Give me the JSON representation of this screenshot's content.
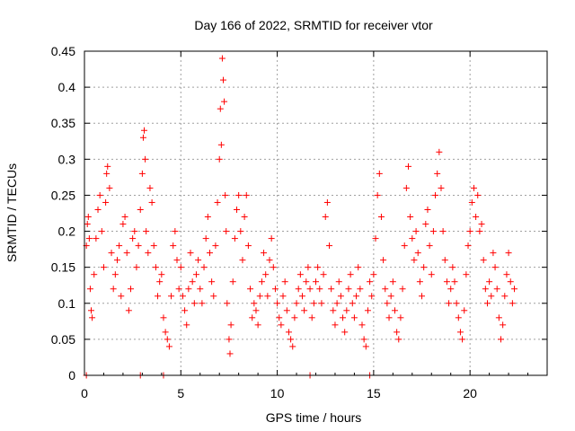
{
  "chart_data": {
    "type": "scatter",
    "title": "Day 166 of 2022, SRMTID for receiver vtor",
    "xlabel": "GPS time / hours",
    "ylabel": "SRMTID / TECUs",
    "xlim": [
      0,
      24
    ],
    "ylim": [
      0,
      0.45
    ],
    "xticks": [
      0,
      5,
      10,
      15,
      20
    ],
    "yticks": [
      0,
      0.05,
      0.1,
      0.15,
      0.2,
      0.25,
      0.3,
      0.35,
      0.4,
      0.45
    ],
    "xtick_labels": [
      "0",
      "5",
      "10",
      "15",
      "20"
    ],
    "ytick_labels": [
      "0",
      "0.05",
      "0.1",
      "0.15",
      "0.2",
      "0.25",
      "0.3",
      "0.35",
      "0.4",
      "0.45"
    ],
    "marker": "plus",
    "color": "#ff0000",
    "grid": true,
    "series": [
      {
        "name": "SRMTID",
        "points": [
          [
            0.1,
            0.18
          ],
          [
            0.15,
            0.21
          ],
          [
            0.2,
            0.22
          ],
          [
            0.25,
            0.19
          ],
          [
            0.3,
            0.12
          ],
          [
            0.35,
            0.09
          ],
          [
            0.4,
            0.08
          ],
          [
            0.5,
            0.14
          ],
          [
            0.6,
            0.19
          ],
          [
            0.7,
            0.23
          ],
          [
            0.8,
            0.25
          ],
          [
            0.9,
            0.2
          ],
          [
            1.0,
            0.15
          ],
          [
            1.1,
            0.24
          ],
          [
            1.15,
            0.28
          ],
          [
            1.2,
            0.29
          ],
          [
            1.3,
            0.26
          ],
          [
            1.4,
            0.17
          ],
          [
            1.5,
            0.12
          ],
          [
            1.6,
            0.14
          ],
          [
            1.7,
            0.16
          ],
          [
            1.8,
            0.18
          ],
          [
            1.9,
            0.11
          ],
          [
            2.0,
            0.21
          ],
          [
            2.1,
            0.22
          ],
          [
            2.2,
            0.17
          ],
          [
            2.3,
            0.09
          ],
          [
            2.4,
            0.12
          ],
          [
            2.5,
            0.19
          ],
          [
            2.6,
            0.2
          ],
          [
            2.7,
            0.15
          ],
          [
            2.8,
            0.18
          ],
          [
            2.9,
            0.23
          ],
          [
            3.0,
            0.28
          ],
          [
            3.05,
            0.33
          ],
          [
            3.1,
            0.34
          ],
          [
            3.15,
            0.3
          ],
          [
            3.2,
            0.2
          ],
          [
            3.3,
            0.17
          ],
          [
            3.4,
            0.26
          ],
          [
            3.5,
            0.24
          ],
          [
            3.6,
            0.18
          ],
          [
            3.7,
            0.15
          ],
          [
            3.8,
            0.11
          ],
          [
            3.9,
            0.13
          ],
          [
            4.0,
            0.14
          ],
          [
            4.1,
            0.08
          ],
          [
            4.2,
            0.06
          ],
          [
            4.3,
            0.05
          ],
          [
            4.4,
            0.04
          ],
          [
            4.5,
            0.11
          ],
          [
            4.6,
            0.18
          ],
          [
            4.7,
            0.2
          ],
          [
            4.8,
            0.16
          ],
          [
            4.9,
            0.12
          ],
          [
            5.0,
            0.15
          ],
          [
            5.1,
            0.11
          ],
          [
            5.2,
            0.09
          ],
          [
            5.3,
            0.07
          ],
          [
            5.4,
            0.12
          ],
          [
            5.5,
            0.17
          ],
          [
            5.6,
            0.13
          ],
          [
            5.7,
            0.1
          ],
          [
            5.8,
            0.14
          ],
          [
            5.9,
            0.16
          ],
          [
            6.0,
            0.12
          ],
          [
            6.1,
            0.1
          ],
          [
            6.2,
            0.15
          ],
          [
            6.3,
            0.19
          ],
          [
            6.4,
            0.22
          ],
          [
            6.5,
            0.17
          ],
          [
            6.6,
            0.13
          ],
          [
            6.7,
            0.11
          ],
          [
            6.8,
            0.18
          ],
          [
            6.9,
            0.24
          ],
          [
            7.0,
            0.3
          ],
          [
            7.05,
            0.37
          ],
          [
            7.1,
            0.32
          ],
          [
            7.15,
            0.44
          ],
          [
            7.2,
            0.41
          ],
          [
            7.25,
            0.38
          ],
          [
            7.3,
            0.25
          ],
          [
            7.35,
            0.2
          ],
          [
            7.4,
            0.1
          ],
          [
            7.5,
            0.05
          ],
          [
            7.55,
            0.03
          ],
          [
            7.6,
            0.07
          ],
          [
            7.7,
            0.13
          ],
          [
            7.8,
            0.19
          ],
          [
            7.9,
            0.23
          ],
          [
            8.0,
            0.25
          ],
          [
            8.1,
            0.2
          ],
          [
            8.2,
            0.16
          ],
          [
            8.3,
            0.22
          ],
          [
            8.4,
            0.25
          ],
          [
            8.5,
            0.18
          ],
          [
            8.6,
            0.12
          ],
          [
            8.7,
            0.08
          ],
          [
            8.8,
            0.1
          ],
          [
            8.9,
            0.09
          ],
          [
            9.0,
            0.07
          ],
          [
            9.1,
            0.11
          ],
          [
            9.2,
            0.13
          ],
          [
            9.3,
            0.17
          ],
          [
            9.4,
            0.14
          ],
          [
            9.5,
            0.11
          ],
          [
            9.6,
            0.16
          ],
          [
            9.7,
            0.19
          ],
          [
            9.8,
            0.15
          ],
          [
            9.9,
            0.12
          ],
          [
            10.0,
            0.1
          ],
          [
            10.1,
            0.08
          ],
          [
            10.2,
            0.07
          ],
          [
            10.3,
            0.11
          ],
          [
            10.4,
            0.13
          ],
          [
            10.5,
            0.09
          ],
          [
            10.6,
            0.06
          ],
          [
            10.7,
            0.05
          ],
          [
            10.8,
            0.04
          ],
          [
            10.9,
            0.08
          ],
          [
            11.0,
            0.1
          ],
          [
            11.1,
            0.12
          ],
          [
            11.2,
            0.14
          ],
          [
            11.3,
            0.11
          ],
          [
            11.4,
            0.09
          ],
          [
            11.5,
            0.13
          ],
          [
            11.6,
            0.15
          ],
          [
            11.7,
            0.12
          ],
          [
            11.8,
            0.08
          ],
          [
            11.9,
            0.1
          ],
          [
            12.0,
            0.13
          ],
          [
            12.1,
            0.15
          ],
          [
            12.2,
            0.12
          ],
          [
            12.3,
            0.1
          ],
          [
            12.4,
            0.14
          ],
          [
            12.5,
            0.22
          ],
          [
            12.6,
            0.24
          ],
          [
            12.7,
            0.18
          ],
          [
            12.8,
            0.12
          ],
          [
            12.9,
            0.09
          ],
          [
            13.0,
            0.07
          ],
          [
            13.1,
            0.1
          ],
          [
            13.2,
            0.13
          ],
          [
            13.3,
            0.11
          ],
          [
            13.4,
            0.08
          ],
          [
            13.5,
            0.06
          ],
          [
            13.6,
            0.09
          ],
          [
            13.7,
            0.12
          ],
          [
            13.8,
            0.14
          ],
          [
            13.9,
            0.1
          ],
          [
            14.0,
            0.08
          ],
          [
            14.1,
            0.11
          ],
          [
            14.2,
            0.15
          ],
          [
            14.3,
            0.12
          ],
          [
            14.4,
            0.07
          ],
          [
            14.5,
            0.05
          ],
          [
            14.6,
            0.04
          ],
          [
            14.7,
            0.09
          ],
          [
            14.8,
            0.13
          ],
          [
            14.9,
            0.11
          ],
          [
            15.0,
            0.14
          ],
          [
            15.1,
            0.19
          ],
          [
            15.2,
            0.25
          ],
          [
            15.3,
            0.28
          ],
          [
            15.4,
            0.22
          ],
          [
            15.5,
            0.16
          ],
          [
            15.6,
            0.12
          ],
          [
            15.7,
            0.1
          ],
          [
            15.8,
            0.08
          ],
          [
            15.9,
            0.11
          ],
          [
            16.0,
            0.13
          ],
          [
            16.1,
            0.09
          ],
          [
            16.2,
            0.06
          ],
          [
            16.3,
            0.05
          ],
          [
            16.4,
            0.08
          ],
          [
            16.5,
            0.12
          ],
          [
            16.6,
            0.18
          ],
          [
            16.7,
            0.26
          ],
          [
            16.8,
            0.29
          ],
          [
            16.9,
            0.22
          ],
          [
            17.0,
            0.19
          ],
          [
            17.1,
            0.16
          ],
          [
            17.2,
            0.2
          ],
          [
            17.3,
            0.17
          ],
          [
            17.4,
            0.13
          ],
          [
            17.5,
            0.11
          ],
          [
            17.6,
            0.15
          ],
          [
            17.7,
            0.21
          ],
          [
            17.8,
            0.23
          ],
          [
            17.9,
            0.18
          ],
          [
            18.0,
            0.14
          ],
          [
            18.1,
            0.2
          ],
          [
            18.2,
            0.25
          ],
          [
            18.3,
            0.28
          ],
          [
            18.4,
            0.31
          ],
          [
            18.5,
            0.26
          ],
          [
            18.6,
            0.2
          ],
          [
            18.7,
            0.16
          ],
          [
            18.8,
            0.13
          ],
          [
            18.9,
            0.1
          ],
          [
            19.0,
            0.12
          ],
          [
            19.1,
            0.15
          ],
          [
            19.2,
            0.13
          ],
          [
            19.3,
            0.1
          ],
          [
            19.4,
            0.08
          ],
          [
            19.5,
            0.06
          ],
          [
            19.6,
            0.05
          ],
          [
            19.7,
            0.09
          ],
          [
            19.8,
            0.14
          ],
          [
            19.9,
            0.18
          ],
          [
            20.0,
            0.2
          ],
          [
            20.1,
            0.24
          ],
          [
            20.2,
            0.26
          ],
          [
            20.3,
            0.22
          ],
          [
            20.4,
            0.25
          ],
          [
            20.5,
            0.2
          ],
          [
            20.6,
            0.21
          ],
          [
            20.7,
            0.16
          ],
          [
            20.8,
            0.12
          ],
          [
            20.9,
            0.1
          ],
          [
            21.0,
            0.13
          ],
          [
            21.1,
            0.11
          ],
          [
            21.2,
            0.17
          ],
          [
            21.3,
            0.15
          ],
          [
            21.4,
            0.12
          ],
          [
            21.5,
            0.08
          ],
          [
            21.6,
            0.05
          ],
          [
            21.7,
            0.07
          ],
          [
            21.8,
            0.11
          ],
          [
            21.9,
            0.14
          ],
          [
            22.0,
            0.17
          ],
          [
            22.1,
            0.13
          ],
          [
            22.2,
            0.1
          ],
          [
            22.3,
            0.12
          ]
        ]
      },
      {
        "name": "zero-values",
        "points": [
          [
            0.1,
            0
          ],
          [
            2.9,
            0
          ],
          [
            4.1,
            0
          ],
          [
            11.7,
            0
          ],
          [
            14.8,
            0
          ]
        ]
      }
    ]
  }
}
